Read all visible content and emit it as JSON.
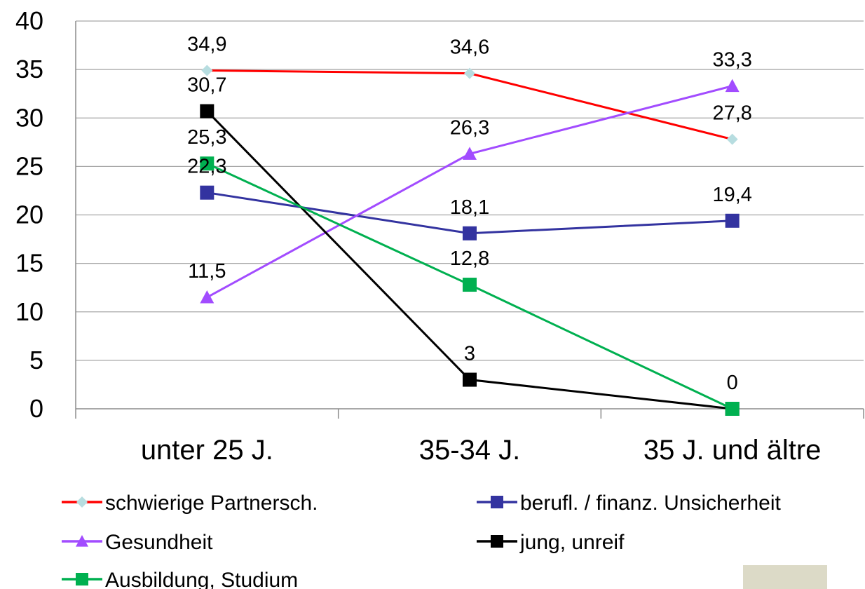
{
  "chart_data": {
    "type": "line",
    "categories": [
      "unter 25 J.",
      "35-34 J.",
      "35 J. und ältre"
    ],
    "ylim": [
      0,
      40
    ],
    "yticks": [
      0,
      5,
      10,
      15,
      20,
      25,
      30,
      35,
      40
    ],
    "grid": true,
    "legend_position": "bottom",
    "series": [
      {
        "name": "schwierige Partnersch.",
        "values": [
          34.9,
          34.6,
          27.8
        ],
        "labels": [
          "34,9",
          "34,6",
          "27,8"
        ],
        "line_color": "#ff0000",
        "marker": "diamond",
        "marker_color": "#b7dde0"
      },
      {
        "name": "berufl. / finanz. Unsicherheit",
        "values": [
          22.3,
          18.1,
          19.4
        ],
        "labels": [
          "22,3",
          "18,1",
          "19,4"
        ],
        "line_color": "#3333a0",
        "marker": "square",
        "marker_color": "#3333a0"
      },
      {
        "name": "Gesundheit",
        "values": [
          11.5,
          26.3,
          33.3
        ],
        "labels": [
          "11,5",
          "26,3",
          "33,3"
        ],
        "line_color": "#a24cff",
        "marker": "triangle",
        "marker_color": "#a24cff"
      },
      {
        "name": "jung, unreif",
        "values": [
          30.7,
          3,
          0
        ],
        "labels": [
          "30,7",
          "3",
          null
        ],
        "line_color": "#000000",
        "marker": "square",
        "marker_color": "#000000"
      },
      {
        "name": "Ausbildung, Studium",
        "values": [
          25.3,
          12.8,
          0
        ],
        "labels": [
          "25,3",
          "12,8",
          "0"
        ],
        "line_color": "#00b050",
        "marker": "square",
        "marker_color": "#00b050"
      }
    ]
  }
}
